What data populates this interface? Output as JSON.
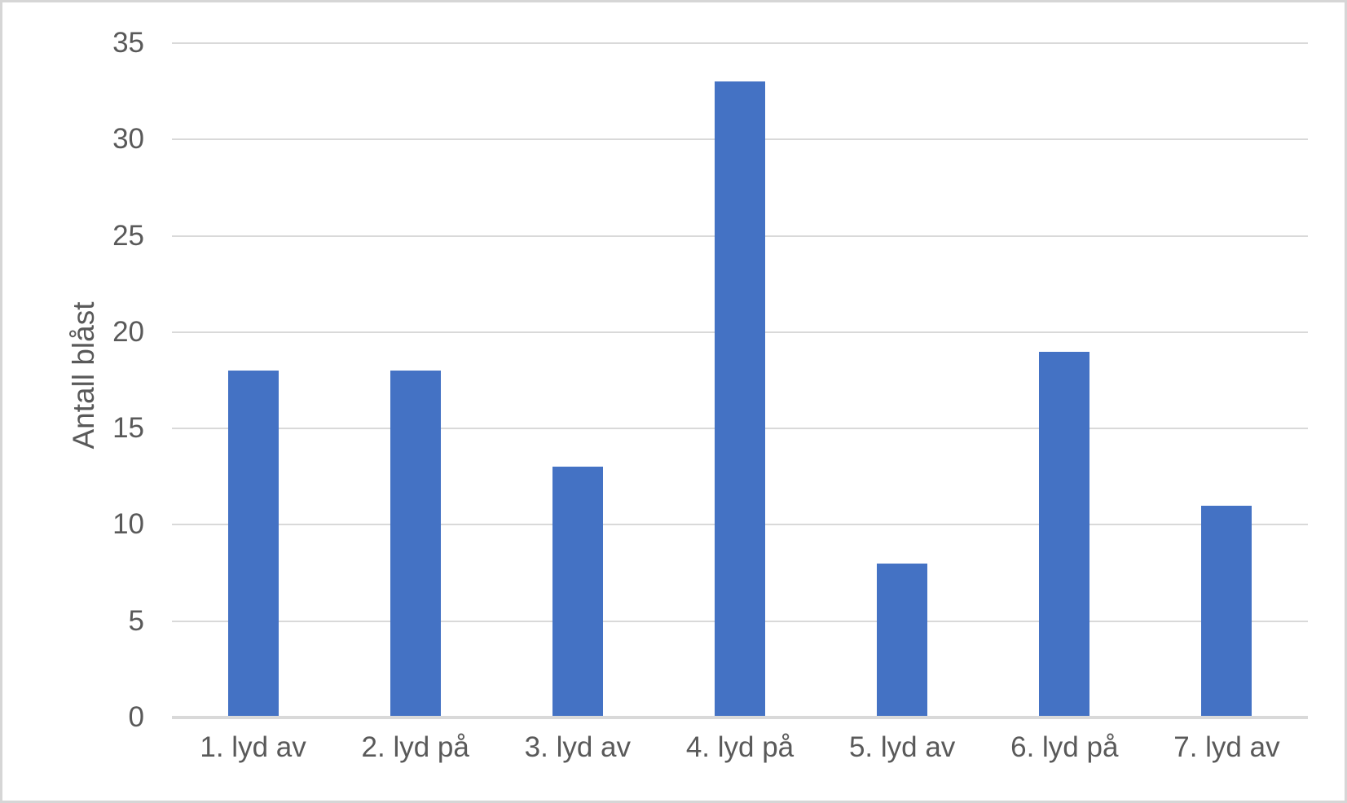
{
  "chart_data": {
    "type": "bar",
    "categories": [
      "1. lyd av",
      "2. lyd på",
      "3. lyd av",
      "4. lyd på",
      "5. lyd av",
      "6. lyd på",
      "7. lyd av"
    ],
    "values": [
      18,
      18,
      13,
      33,
      8,
      19,
      11
    ],
    "title": "",
    "xlabel": "",
    "ylabel": "Antall blåst",
    "ylim": [
      0,
      35
    ],
    "yticks": [
      0,
      5,
      10,
      15,
      20,
      25,
      30,
      35
    ],
    "grid": true,
    "legend_position": "none",
    "bar_color": "#4472C4",
    "gridline_color": "#D9D9D9",
    "axis_line_color": "#D9D9D9",
    "text_color": "#595959",
    "frame_border_color": "#D6D6D6"
  }
}
